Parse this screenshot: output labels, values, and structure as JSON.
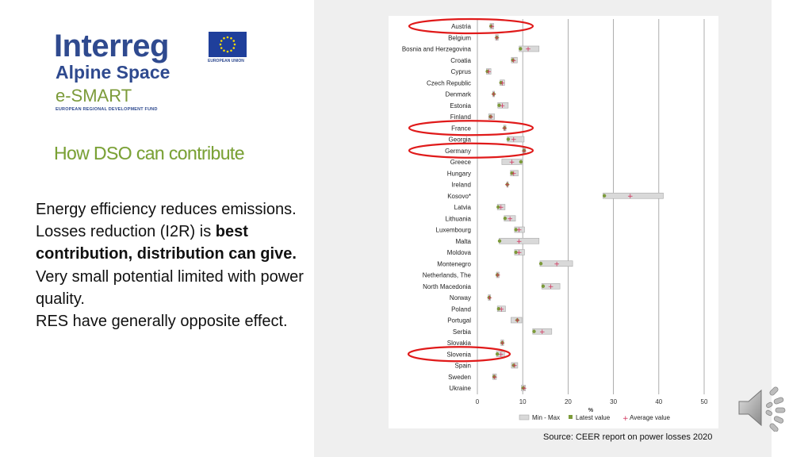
{
  "logo": {
    "interreg": "Interreg",
    "alpine_space": "Alpine Space",
    "esmart": "e-SMART",
    "fund": "EUROPEAN REGIONAL DEVELOPMENT FUND",
    "eu_caption": "EUROPEAN UNION"
  },
  "slide": {
    "heading": "How DSO can contribute",
    "paragraph1": "Energy efficiency reduces emissions.",
    "paragraph2_normal": "Losses reduction (I2R) is ",
    "paragraph2_bold": "best contribution, distribution can give.",
    "paragraph3": "Very small potential limited with power quality.",
    "paragraph4": "RES have generally opposite effect.",
    "source": "Source: CEER report on power losses 2020"
  },
  "colors": {
    "heading": "#7aa234",
    "logo_blue": "#2f4a8f",
    "latest_marker": "#7c9b3a",
    "average_marker": "#d0305a",
    "range_bar": "#d9d9d9",
    "highlight_ellipse": "#e01a1a"
  },
  "chart_data": {
    "type": "range-dot",
    "xlabel": "%",
    "xlim": [
      0,
      50
    ],
    "xticks": [
      0,
      10,
      20,
      30,
      40,
      50
    ],
    "grid": true,
    "legend": {
      "position": "bottom",
      "items": [
        "Min - Max",
        "Latest value",
        "Average value"
      ]
    },
    "highlighted": [
      "Austria",
      "France",
      "Germany",
      "Slovenia"
    ],
    "categories": [
      "Austria",
      "Belgium",
      "Bosnia and Herzegovina",
      "Croatia",
      "Cyprus",
      "Czech Republic",
      "Denmark",
      "Estonia",
      "Finland",
      "France",
      "Georgia",
      "Germany",
      "Greece",
      "Hungary",
      "Ireland",
      "Kosovo*",
      "Latvia",
      "Lithuania",
      "Luxembourg",
      "Malta",
      "Moldova",
      "Montenegro",
      "Netherlands, The",
      "North Macedonia",
      "Norway",
      "Poland",
      "Portugal",
      "Serbia",
      "Slovakia",
      "Slovenia",
      "Spain",
      "Sweden",
      "Ukraine"
    ],
    "series": [
      {
        "name": "Min - Max",
        "values": [
          [
            2.8,
            3.6
          ],
          [
            4.0,
            4.6
          ],
          [
            9.2,
            13.6
          ],
          [
            7.5,
            8.8
          ],
          [
            2.0,
            3.0
          ],
          [
            5.0,
            6.0
          ],
          [
            3.4,
            3.8
          ],
          [
            4.5,
            6.8
          ],
          [
            2.5,
            3.8
          ],
          [
            5.8,
            6.3
          ],
          [
            6.6,
            10.3
          ],
          [
            10.1,
            10.6
          ],
          [
            5.4,
            9.8
          ],
          [
            7.3,
            9.0
          ],
          [
            6.5,
            6.8
          ],
          [
            27.7,
            41.0
          ],
          [
            4.4,
            6.1
          ],
          [
            5.9,
            8.4
          ],
          [
            8.2,
            10.4
          ],
          [
            4.8,
            13.6
          ],
          [
            8.2,
            10.4
          ],
          [
            13.8,
            21.0
          ],
          [
            4.2,
            4.8
          ],
          [
            14.2,
            18.2
          ],
          [
            2.4,
            2.9
          ],
          [
            4.4,
            6.2
          ],
          [
            7.4,
            9.8
          ],
          [
            12.2,
            16.4
          ],
          [
            5.2,
            5.8
          ],
          [
            4.2,
            6.0
          ],
          [
            7.5,
            8.9
          ],
          [
            3.4,
            4.2
          ],
          [
            9.7,
            10.6
          ]
        ]
      },
      {
        "name": "Latest value",
        "values": [
          3.0,
          4.3,
          9.5,
          7.8,
          2.2,
          5.2,
          3.6,
          4.8,
          2.9,
          6.0,
          6.8,
          10.3,
          9.6,
          7.6,
          6.6,
          28.0,
          4.6,
          6.1,
          8.5,
          4.9,
          8.5,
          14.0,
          4.4,
          14.5,
          2.6,
          4.7,
          8.8,
          12.5,
          5.5,
          4.4,
          8.0,
          3.7,
          10.1
        ]
      },
      {
        "name": "Average value",
        "values": [
          3.2,
          4.3,
          11.2,
          8.0,
          2.5,
          5.5,
          3.6,
          5.5,
          3.0,
          6.0,
          8.0,
          10.3,
          7.6,
          8.0,
          6.6,
          33.7,
          5.2,
          7.2,
          9.2,
          9.2,
          9.2,
          17.5,
          4.5,
          16.2,
          2.7,
          5.3,
          8.8,
          14.3,
          5.5,
          5.2,
          8.2,
          3.8,
          10.3
        ]
      }
    ]
  }
}
